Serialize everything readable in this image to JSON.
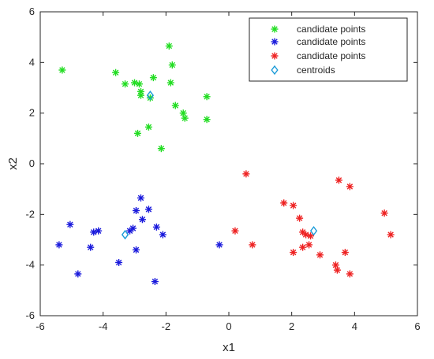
{
  "chart_data": {
    "type": "scatter",
    "title": "",
    "xlabel": "x1",
    "ylabel": "x2",
    "xlim": [
      -6,
      6
    ],
    "ylim": [
      -6,
      6
    ],
    "xticks": [
      "-6",
      "-4",
      "-2",
      "0",
      "2",
      "4",
      "6"
    ],
    "yticks": [
      "-6",
      "-4",
      "-2",
      "0",
      "2",
      "4",
      "6"
    ],
    "grid": false,
    "legend_position": "top-right",
    "legend": [
      "candidate points",
      "candidate points",
      "candidate points",
      "centroids"
    ],
    "series": [
      {
        "name": "candidate points",
        "marker": "asterisk",
        "color": "#22dd22",
        "points": [
          [
            -5.3,
            3.7
          ],
          [
            -3.6,
            3.6
          ],
          [
            -3.3,
            3.15
          ],
          [
            -3.0,
            3.2
          ],
          [
            -2.85,
            3.15
          ],
          [
            -2.8,
            2.85
          ],
          [
            -2.8,
            2.7
          ],
          [
            -2.5,
            2.6
          ],
          [
            -2.4,
            3.4
          ],
          [
            -1.9,
            4.65
          ],
          [
            -1.8,
            3.9
          ],
          [
            -1.85,
            3.2
          ],
          [
            -1.7,
            2.3
          ],
          [
            -1.45,
            2.0
          ],
          [
            -1.4,
            1.8
          ],
          [
            -0.7,
            2.65
          ],
          [
            -0.7,
            1.75
          ],
          [
            -2.55,
            1.45
          ],
          [
            -2.9,
            1.2
          ],
          [
            -2.15,
            0.6
          ]
        ]
      },
      {
        "name": "candidate points",
        "marker": "asterisk",
        "color": "#1a1adc",
        "points": [
          [
            -5.4,
            -3.2
          ],
          [
            -5.05,
            -2.4
          ],
          [
            -4.8,
            -4.35
          ],
          [
            -4.4,
            -3.3
          ],
          [
            -4.3,
            -2.7
          ],
          [
            -4.15,
            -2.65
          ],
          [
            -3.5,
            -3.9
          ],
          [
            -3.15,
            -2.65
          ],
          [
            -3.05,
            -2.55
          ],
          [
            -2.95,
            -1.85
          ],
          [
            -2.95,
            -3.4
          ],
          [
            -2.8,
            -1.35
          ],
          [
            -2.75,
            -2.2
          ],
          [
            -2.55,
            -1.8
          ],
          [
            -2.3,
            -2.5
          ],
          [
            -2.1,
            -2.8
          ],
          [
            -2.35,
            -4.65
          ],
          [
            -0.3,
            -3.2
          ]
        ]
      },
      {
        "name": "candidate points",
        "marker": "asterisk",
        "color": "#ee2222",
        "points": [
          [
            0.55,
            -0.4
          ],
          [
            0.2,
            -2.65
          ],
          [
            0.75,
            -3.2
          ],
          [
            1.75,
            -1.55
          ],
          [
            2.05,
            -1.65
          ],
          [
            2.25,
            -2.15
          ],
          [
            2.05,
            -3.5
          ],
          [
            2.35,
            -2.7
          ],
          [
            2.45,
            -2.8
          ],
          [
            2.35,
            -3.3
          ],
          [
            2.55,
            -3.2
          ],
          [
            2.6,
            -2.85
          ],
          [
            2.9,
            -3.6
          ],
          [
            3.4,
            -4.0
          ],
          [
            3.45,
            -4.2
          ],
          [
            3.5,
            -0.65
          ],
          [
            3.7,
            -3.5
          ],
          [
            3.85,
            -0.9
          ],
          [
            3.85,
            -4.35
          ],
          [
            4.95,
            -1.95
          ],
          [
            5.15,
            -2.8
          ]
        ]
      },
      {
        "name": "centroids",
        "marker": "diamond",
        "color": "#1a9bd8",
        "points": [
          [
            -2.5,
            2.7
          ],
          [
            -3.3,
            -2.8
          ],
          [
            2.7,
            -2.65
          ]
        ]
      }
    ]
  }
}
